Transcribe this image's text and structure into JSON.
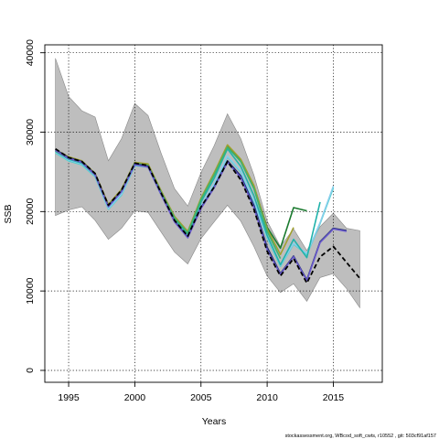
{
  "footer_text": "stockassessment.org, WBcod_soft_cwts, r10552 , git: 503cf91af157",
  "chart_data": {
    "type": "line",
    "title": "",
    "xlabel": "Years",
    "ylabel": "SSB",
    "xlim": [
      1993.2,
      2018.7
    ],
    "ylim": [
      -1500,
      41000
    ],
    "xticks": [
      1995,
      2000,
      2005,
      2010,
      2015
    ],
    "yticks": [
      0,
      10000,
      20000,
      30000,
      40000
    ],
    "grid": true,
    "legend": "none",
    "confidence_band": {
      "color": "#bebebe",
      "x": [
        1994,
        1995,
        1996,
        1997,
        1998,
        1999,
        2000,
        2001,
        2002,
        2003,
        2004,
        2005,
        2006,
        2007,
        2008,
        2009,
        2010,
        2011,
        2012,
        2013,
        2014,
        2015,
        2016,
        2017
      ],
      "upper": [
        39300,
        34500,
        32700,
        31900,
        26400,
        29200,
        33600,
        32100,
        27300,
        22900,
        20700,
        24900,
        28300,
        32300,
        29200,
        24600,
        18800,
        15600,
        17800,
        15100,
        18100,
        19800,
        17900,
        17600
      ],
      "lower": [
        19500,
        20200,
        20600,
        18900,
        16500,
        17900,
        20100,
        19900,
        17400,
        14900,
        13400,
        16600,
        18700,
        20800,
        18800,
        15600,
        11900,
        9800,
        10900,
        8700,
        11700,
        12200,
        10300,
        7900
      ]
    },
    "series": [
      {
        "color": "#48d1cc",
        "x": [
          1994,
          1995,
          1996,
          1997,
          1998,
          1999,
          2000,
          2001,
          2002,
          2003,
          2004,
          2005,
          2006,
          2007,
          2008,
          2009,
          2010,
          2011,
          2012,
          2013,
          2014,
          2015
        ],
        "values": [
          27400,
          26400,
          25900,
          24400,
          20300,
          22100,
          25800,
          25600,
          22100,
          18900,
          16900,
          20600,
          23400,
          26900,
          25000,
          21200,
          16700,
          13100,
          15900,
          14600,
          18500,
          23000
        ]
      },
      {
        "color": "#87ceeb",
        "x": [
          1994,
          1995,
          1996,
          1997,
          1998,
          1999,
          2000,
          2001,
          2002,
          2003,
          2004,
          2005,
          2006,
          2007,
          2008,
          2009,
          2010,
          2011,
          2012,
          2013,
          2014,
          2015
        ],
        "values": [
          27500,
          26500,
          26000,
          24500,
          20400,
          22200,
          25900,
          25700,
          22200,
          19000,
          17000,
          20700,
          23500,
          27000,
          25100,
          21300,
          16800,
          13200,
          16000,
          14700,
          18600,
          23200
        ]
      },
      {
        "color": "#20b2aa",
        "x": [
          1994,
          1995,
          1996,
          1997,
          1998,
          1999,
          2000,
          2001,
          2002,
          2003,
          2004,
          2005,
          2006,
          2007,
          2008,
          2009,
          2010,
          2011,
          2012,
          2013,
          2014
        ],
        "values": [
          27600,
          26600,
          26100,
          24600,
          20600,
          22500,
          26000,
          25800,
          22300,
          19100,
          17200,
          21200,
          24200,
          27900,
          25700,
          22000,
          17000,
          13300,
          16500,
          14200,
          21200
        ]
      },
      {
        "color": "#1a7a2e",
        "x": [
          1994,
          1995,
          1996,
          1997,
          1998,
          1999,
          2000,
          2001,
          2002,
          2003,
          2004,
          2005,
          2006,
          2007,
          2008,
          2009,
          2010,
          2011,
          2012,
          2013
        ],
        "values": [
          27700,
          26800,
          26300,
          24700,
          20800,
          22700,
          26100,
          25900,
          22500,
          19300,
          17400,
          21600,
          24800,
          28300,
          26500,
          23200,
          18000,
          15400,
          20500,
          20100
        ]
      },
      {
        "color": "#a0a030",
        "x": [
          1994,
          1995,
          1996,
          1997,
          1998,
          1999,
          2000,
          2001,
          2002,
          2003,
          2004,
          2005,
          2006,
          2007,
          2008,
          2009,
          2010,
          2011,
          2012
        ],
        "values": [
          27800,
          26900,
          26400,
          24800,
          20900,
          22800,
          26200,
          26000,
          22600,
          19400,
          17500,
          21700,
          24900,
          28400,
          26600,
          23300,
          17800,
          14600,
          18000
        ]
      },
      {
        "color": "#3cb371",
        "x": [
          1994,
          1995,
          1996,
          1997,
          1998,
          1999,
          2000,
          2001,
          2002,
          2003,
          2004,
          2005,
          2006,
          2007,
          2008,
          2009,
          2010,
          2011
        ],
        "values": [
          27600,
          26700,
          26200,
          24600,
          20700,
          22600,
          26100,
          25800,
          22400,
          19200,
          17300,
          21500,
          24600,
          28100,
          26300,
          22900,
          17500,
          14100
        ]
      },
      {
        "color": "#1e2a6e",
        "x": [
          1994,
          1995,
          1996,
          1997,
          1998,
          1999,
          2000,
          2001,
          2002,
          2003,
          2004,
          2005,
          2006,
          2007,
          2008,
          2009,
          2010,
          2011,
          2012,
          2013,
          2014,
          2015,
          2016
        ],
        "values": [
          27800,
          26800,
          26300,
          24700,
          20700,
          22600,
          26000,
          25700,
          22200,
          18800,
          16800,
          20500,
          23100,
          26400,
          24500,
          20800,
          15500,
          12200,
          14400,
          11400,
          16200,
          17900,
          17600
        ]
      },
      {
        "color": "#6a5acd",
        "x": [
          1994,
          1995,
          1996,
          1997,
          1998,
          1999,
          2000,
          2001,
          2002,
          2003,
          2004,
          2005,
          2006,
          2007,
          2008,
          2009,
          2010,
          2011,
          2012,
          2013,
          2014,
          2015,
          2016
        ],
        "values": [
          27700,
          26700,
          26200,
          24600,
          20600,
          22500,
          25900,
          25600,
          22100,
          18700,
          16700,
          20400,
          23000,
          26200,
          24300,
          20500,
          15200,
          12100,
          14300,
          11300,
          16100,
          17800,
          17500
        ]
      },
      {
        "color": "#000000",
        "dashed": true,
        "x": [
          1994,
          1995,
          1996,
          1997,
          1998,
          1999,
          2000,
          2001,
          2002,
          2003,
          2004,
          2005,
          2006,
          2007,
          2008,
          2009,
          2010,
          2011,
          2012,
          2013,
          2014,
          2015,
          2016,
          2017
        ],
        "values": [
          27900,
          26800,
          26300,
          24800,
          20800,
          22700,
          26100,
          25800,
          22300,
          18900,
          16900,
          20600,
          23100,
          26300,
          24000,
          20300,
          15000,
          11900,
          14100,
          11000,
          14300,
          15600,
          13600,
          11600
        ]
      }
    ]
  }
}
